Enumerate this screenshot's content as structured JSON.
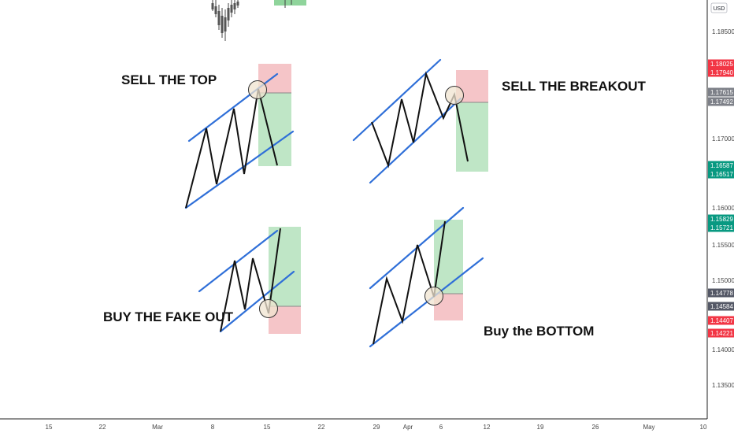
{
  "chart_data": {
    "type": "line",
    "x_ticks": [
      "15",
      "22",
      "Mar",
      "8",
      "15",
      "22",
      "29",
      "Apr",
      "6",
      "12",
      "19",
      "26",
      "May",
      "10"
    ],
    "y_ticks": [
      "1.18500",
      "1.17000",
      "1.16000",
      "1.15500",
      "1.15000",
      "1.14000",
      "1.13500"
    ],
    "currency_badge": "USD",
    "price_tags": [
      {
        "text": "1.18025",
        "color": "#f23645"
      },
      {
        "text": "1.17940",
        "color": "#f23645"
      },
      {
        "text": "1.17615",
        "color": "#7d8088"
      },
      {
        "text": "1.17492",
        "color": "#7d8088"
      },
      {
        "text": "1.16587",
        "color": "#089981"
      },
      {
        "text": "1.16517",
        "color": "#089981"
      },
      {
        "text": "1.15829",
        "color": "#089981"
      },
      {
        "text": "1.15721",
        "color": "#089981"
      },
      {
        "text": "1.14778",
        "color": "#545866"
      },
      {
        "text": "1.14584",
        "color": "#545866"
      },
      {
        "text": "1.14407",
        "color": "#f23645"
      },
      {
        "text": "1.14221",
        "color": "#f23645"
      }
    ],
    "annotations": [
      "SELL THE TOP",
      "SELL THE BREAKOUT",
      "BUY THE FAKE OUT",
      "Buy the BOTTOM"
    ],
    "colors": {
      "channel": "#2f6fd8",
      "zigzag": "#111111",
      "loss_zone": "#f5c5c8",
      "profit_zone": "#bfe6c6",
      "circle_fill": "#f0e4d0"
    }
  }
}
